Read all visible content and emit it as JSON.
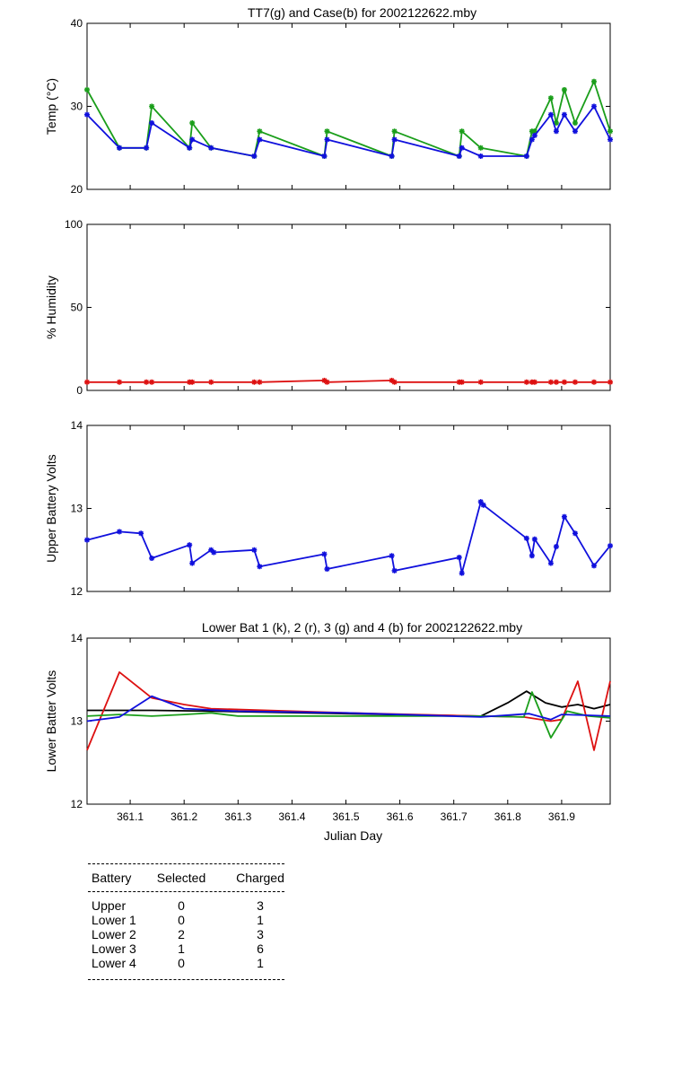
{
  "chart_data": [
    {
      "type": "line",
      "title": "TT7(g) and Case(b) for 2002122622.mby",
      "xlabel": "",
      "ylabel": "Temp  (°C)",
      "xlim": [
        361.02,
        361.99
      ],
      "ylim": [
        20,
        40
      ],
      "yticks": [
        20,
        30,
        40
      ],
      "series": [
        {
          "name": "TT7",
          "color": "#1a9e1a",
          "marker": "*",
          "x": [
            361.02,
            361.08,
            361.13,
            361.14,
            361.21,
            361.215,
            361.25,
            361.33,
            361.34,
            361.46,
            361.465,
            361.585,
            361.59,
            361.71,
            361.715,
            361.75,
            361.835,
            361.845,
            361.85,
            361.88,
            361.89,
            361.905,
            361.925,
            361.96,
            361.99
          ],
          "y": [
            32,
            25,
            25,
            30,
            25,
            28,
            25,
            24,
            27,
            24,
            27,
            24,
            27,
            24,
            27,
            25,
            24,
            27,
            27,
            31,
            28,
            32,
            28,
            33,
            27
          ]
        },
        {
          "name": "Case",
          "color": "#1010dd",
          "marker": "*",
          "x": [
            361.02,
            361.08,
            361.13,
            361.14,
            361.21,
            361.215,
            361.25,
            361.33,
            361.34,
            361.46,
            361.465,
            361.585,
            361.59,
            361.71,
            361.715,
            361.75,
            361.835,
            361.845,
            361.85,
            361.88,
            361.89,
            361.905,
            361.925,
            361.96,
            361.99
          ],
          "y": [
            29,
            25,
            25,
            28,
            25,
            26,
            25,
            24,
            26,
            24,
            26,
            24,
            26,
            24,
            25,
            24,
            24,
            26,
            26.5,
            29,
            27,
            29,
            27,
            30,
            26
          ]
        }
      ]
    },
    {
      "type": "line",
      "title": "",
      "xlabel": "",
      "ylabel": "% Humidity",
      "xlim": [
        361.02,
        361.99
      ],
      "ylim": [
        0,
        100
      ],
      "yticks": [
        0,
        50,
        100
      ],
      "series": [
        {
          "name": "Humidity",
          "color": "#dd1010",
          "marker": "*",
          "x": [
            361.02,
            361.08,
            361.13,
            361.14,
            361.21,
            361.215,
            361.25,
            361.33,
            361.34,
            361.46,
            361.465,
            361.585,
            361.59,
            361.71,
            361.715,
            361.75,
            361.835,
            361.845,
            361.85,
            361.88,
            361.89,
            361.905,
            361.925,
            361.96,
            361.99
          ],
          "y": [
            5,
            5,
            5,
            5,
            5,
            5,
            5,
            5,
            5,
            6,
            5,
            6,
            5,
            5,
            5,
            5,
            5,
            5,
            5,
            5,
            5,
            5,
            5,
            5,
            5
          ]
        }
      ]
    },
    {
      "type": "line",
      "title": "",
      "xlabel": "",
      "ylabel": "Upper Battery Volts",
      "xlim": [
        361.02,
        361.99
      ],
      "ylim": [
        12,
        14
      ],
      "yticks": [
        12,
        13,
        14
      ],
      "series": [
        {
          "name": "Upper",
          "color": "#1010dd",
          "marker": "*",
          "x": [
            361.02,
            361.08,
            361.12,
            361.14,
            361.21,
            361.215,
            361.25,
            361.255,
            361.33,
            361.34,
            361.46,
            361.465,
            361.585,
            361.59,
            361.71,
            361.715,
            361.75,
            361.755,
            361.835,
            361.845,
            361.85,
            361.88,
            361.89,
            361.905,
            361.925,
            361.96,
            361.99
          ],
          "y": [
            12.62,
            12.72,
            12.7,
            12.4,
            12.56,
            12.34,
            12.5,
            12.47,
            12.5,
            12.3,
            12.45,
            12.27,
            12.43,
            12.25,
            12.41,
            12.22,
            13.08,
            13.04,
            12.64,
            12.43,
            12.63,
            12.34,
            12.54,
            12.9,
            12.7,
            12.31,
            12.55
          ]
        }
      ]
    },
    {
      "type": "line",
      "title": "Lower Bat 1 (k), 2 (r), 3 (g) and 4 (b) for 2002122622.mby",
      "xlabel": "Julian Day",
      "ylabel": "Lower Batter Volts",
      "xlim": [
        361.02,
        361.99
      ],
      "ylim": [
        12,
        14
      ],
      "yticks": [
        12,
        13,
        14
      ],
      "xticks": [
        361.1,
        361.2,
        361.3,
        361.4,
        361.5,
        361.6,
        361.7,
        361.8,
        361.9
      ],
      "series": [
        {
          "name": "Lower 1",
          "color": "#000000",
          "x": [
            361.02,
            361.14,
            361.25,
            361.5,
            361.75,
            361.8,
            361.835,
            361.87,
            361.9,
            361.93,
            361.96,
            361.99
          ],
          "y": [
            13.13,
            13.13,
            13.12,
            13.09,
            13.06,
            13.22,
            13.36,
            13.22,
            13.17,
            13.2,
            13.15,
            13.2
          ]
        },
        {
          "name": "Lower 2",
          "color": "#dd1010",
          "x": [
            361.02,
            361.08,
            361.14,
            361.2,
            361.25,
            361.5,
            361.75,
            361.83,
            361.88,
            361.9,
            361.93,
            361.96,
            361.99
          ],
          "y": [
            12.65,
            13.59,
            13.28,
            13.2,
            13.15,
            13.1,
            13.06,
            13.05,
            13.0,
            13.02,
            13.48,
            12.65,
            13.48
          ]
        },
        {
          "name": "Lower 3",
          "color": "#1a9e1a",
          "x": [
            361.02,
            361.08,
            361.14,
            361.2,
            361.25,
            361.3,
            361.5,
            361.75,
            361.83,
            361.845,
            361.88,
            361.91,
            361.95,
            361.99
          ],
          "y": [
            13.06,
            13.08,
            13.06,
            13.08,
            13.1,
            13.06,
            13.06,
            13.06,
            13.05,
            13.35,
            12.8,
            13.12,
            13.06,
            13.04
          ]
        },
        {
          "name": "Lower 4",
          "color": "#1010dd",
          "x": [
            361.02,
            361.08,
            361.14,
            361.2,
            361.3,
            361.5,
            361.75,
            361.84,
            361.88,
            361.9,
            361.95,
            361.99
          ],
          "y": [
            13.0,
            13.05,
            13.3,
            13.15,
            13.12,
            13.1,
            13.05,
            13.09,
            13.02,
            13.08,
            13.07,
            13.06
          ]
        }
      ]
    }
  ],
  "summary": {
    "headers": [
      "Battery",
      "Selected",
      "Charged"
    ],
    "rows": [
      {
        "battery": "Upper",
        "selected": "0",
        "charged": "3"
      },
      {
        "battery": "Lower 1",
        "selected": "0",
        "charged": "1"
      },
      {
        "battery": "Lower 2",
        "selected": "2",
        "charged": "3"
      },
      {
        "battery": "Lower 3",
        "selected": "1",
        "charged": "6"
      },
      {
        "battery": "Lower 4",
        "selected": "0",
        "charged": "1"
      }
    ]
  }
}
